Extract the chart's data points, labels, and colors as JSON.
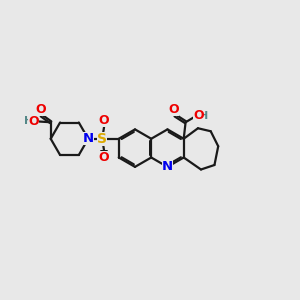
{
  "bg_color": "#e8e8e8",
  "bond_color": "#1a1a1a",
  "N_color": "#0000ee",
  "O_color": "#ee0000",
  "S_color": "#ddaa00",
  "H_color": "#558888",
  "lw": 1.6,
  "fs": 8.5,
  "BL": 0.5,
  "xlim": [
    0,
    8.0
  ],
  "ylim": [
    0.5,
    5.5
  ]
}
